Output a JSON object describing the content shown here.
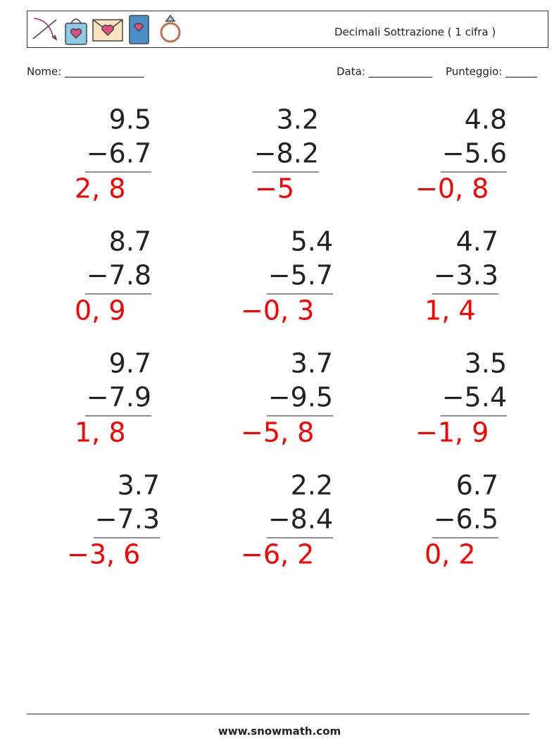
{
  "header": {
    "title": "Decimali Sottrazione ( 1 cifra )"
  },
  "fields": {
    "name": "Nome: _______________",
    "date": "Data: ____________",
    "score": "Punteggio: ______"
  },
  "problems": [
    {
      "top": "9.5",
      "bottom": "−6.7",
      "answer": "2, 8"
    },
    {
      "top": "3.2",
      "bottom": "−8.2",
      "answer": "−5"
    },
    {
      "top": "4.8",
      "bottom": "−5.6",
      "answer": "−0, 8"
    },
    {
      "top": "8.7",
      "bottom": "−7.8",
      "answer": "0, 9"
    },
    {
      "top": "5.4",
      "bottom": "−5.7",
      "answer": "−0, 3"
    },
    {
      "top": "4.7",
      "bottom": "−3.3",
      "answer": "1, 4"
    },
    {
      "top": "9.7",
      "bottom": "−7.9",
      "answer": "1, 8"
    },
    {
      "top": "3.7",
      "bottom": "−9.5",
      "answer": "−5, 8"
    },
    {
      "top": "3.5",
      "bottom": "−5.4",
      "answer": "−1, 9"
    },
    {
      "top": "3.7",
      "bottom": "−7.3",
      "answer": "−3, 6"
    },
    {
      "top": "2.2",
      "bottom": "−8.4",
      "answer": "−6, 2"
    },
    {
      "top": "6.7",
      "bottom": "−6.5",
      "answer": "0, 2"
    }
  ],
  "footer": {
    "site": "www.snowmath.com"
  }
}
